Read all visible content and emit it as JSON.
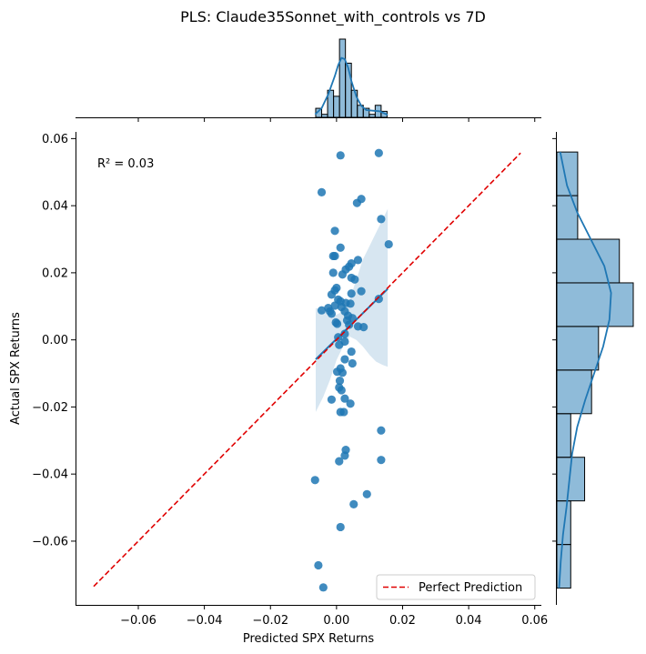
{
  "chart_data": {
    "type": "scatter",
    "title": "PLS: Claude35Sonnet_with_controls vs 7D",
    "xlabel": "Predicted SPX Returns",
    "ylabel": "Actual SPX Returns",
    "annotation": "R² = 0.03",
    "xlim": [
      -0.079,
      0.062
    ],
    "ylim": [
      -0.079,
      0.062
    ],
    "xticks": [
      -0.06,
      -0.04,
      -0.02,
      0.0,
      0.02,
      0.04,
      0.06
    ],
    "yticks": [
      -0.06,
      -0.04,
      -0.02,
      0.0,
      0.02,
      0.04,
      0.06
    ],
    "xtick_labels": [
      "−0.06",
      "−0.04",
      "−0.02",
      "0.00",
      "0.02",
      "0.04",
      "0.06"
    ],
    "ytick_labels": [
      "−0.06",
      "−0.04",
      "−0.02",
      "0.00",
      "0.02",
      "0.04",
      "0.06"
    ],
    "grid": false,
    "colors": {
      "points": "#1f77b4",
      "reference_line": "#e00000",
      "band": "#1f77b4",
      "hist": "#1f77b4"
    },
    "reference_line": {
      "name": "Perfect Prediction",
      "from": [
        -0.0735,
        -0.0735
      ],
      "to": [
        0.0557,
        0.0557
      ],
      "style": "dashed"
    },
    "regression_line": {
      "from": [
        -0.0063,
        -0.0058
      ],
      "to": [
        0.0155,
        0.0152
      ]
    },
    "confidence_band": {
      "x": [
        -0.0063,
        -0.004,
        -0.002,
        0.0,
        0.002,
        0.004,
        0.006,
        0.008,
        0.01,
        0.012,
        0.014,
        0.0155
      ],
      "upper": [
        0.0095,
        0.0085,
        0.008,
        0.0075,
        0.0085,
        0.012,
        0.018,
        0.024,
        0.028,
        0.032,
        0.036,
        0.039
      ],
      "lower": [
        -0.0215,
        -0.017,
        -0.012,
        -0.006,
        -0.002,
        0.001,
        0.0,
        -0.002,
        -0.0045,
        -0.0065,
        -0.0075,
        -0.008
      ]
    },
    "legend": {
      "location": "lower-right",
      "entries": [
        "Perfect Prediction"
      ]
    },
    "points": [
      {
        "x": 0.0012,
        "y": 0.055
      },
      {
        "x": 0.0128,
        "y": 0.0557
      },
      {
        "x": -0.0045,
        "y": 0.044
      },
      {
        "x": 0.0075,
        "y": 0.042
      },
      {
        "x": 0.0062,
        "y": 0.0408
      },
      {
        "x": 0.0135,
        "y": 0.036
      },
      {
        "x": 0.0158,
        "y": 0.0285
      },
      {
        "x": -0.0005,
        "y": 0.0325
      },
      {
        "x": 0.0012,
        "y": 0.0275
      },
      {
        "x": -0.001,
        "y": 0.025
      },
      {
        "x": -0.0005,
        "y": 0.025
      },
      {
        "x": 0.0065,
        "y": 0.0238
      },
      {
        "x": 0.0045,
        "y": 0.0228
      },
      {
        "x": 0.0038,
        "y": 0.0218
      },
      {
        "x": 0.0028,
        "y": 0.021
      },
      {
        "x": -0.001,
        "y": 0.02
      },
      {
        "x": 0.0018,
        "y": 0.0195
      },
      {
        "x": 0.0045,
        "y": 0.0185
      },
      {
        "x": 0.0055,
        "y": 0.018
      },
      {
        "x": 0.0,
        "y": 0.0155
      },
      {
        "x": -0.0005,
        "y": 0.0148
      },
      {
        "x": 0.0075,
        "y": 0.0145
      },
      {
        "x": -0.0015,
        "y": 0.0135
      },
      {
        "x": 0.0045,
        "y": 0.0138
      },
      {
        "x": 0.0128,
        "y": 0.0122
      },
      {
        "x": 0.0005,
        "y": 0.012
      },
      {
        "x": 0.0012,
        "y": 0.0115
      },
      {
        "x": 0.0028,
        "y": 0.011
      },
      {
        "x": 0.0042,
        "y": 0.0108
      },
      {
        "x": -0.0005,
        "y": 0.0102
      },
      {
        "x": 0.0015,
        "y": 0.0098
      },
      {
        "x": -0.0025,
        "y": 0.0095
      },
      {
        "x": -0.0045,
        "y": 0.0088
      },
      {
        "x": -0.002,
        "y": 0.0085
      },
      {
        "x": 0.0025,
        "y": 0.0085
      },
      {
        "x": -0.0015,
        "y": 0.0078
      },
      {
        "x": 0.0035,
        "y": 0.0072
      },
      {
        "x": 0.0048,
        "y": 0.0065
      },
      {
        "x": 0.0032,
        "y": 0.0058
      },
      {
        "x": -0.0002,
        "y": 0.0052
      },
      {
        "x": 0.0002,
        "y": 0.0048
      },
      {
        "x": 0.0038,
        "y": 0.0045
      },
      {
        "x": 0.0065,
        "y": 0.004
      },
      {
        "x": 0.0082,
        "y": 0.0038
      },
      {
        "x": 0.0025,
        "y": 0.0018
      },
      {
        "x": 0.0005,
        "y": 0.0008
      },
      {
        "x": 0.0025,
        "y": -0.0005
      },
      {
        "x": 0.0008,
        "y": -0.0015
      },
      {
        "x": 0.0045,
        "y": -0.0035
      },
      {
        "x": 0.0025,
        "y": -0.0058
      },
      {
        "x": 0.0048,
        "y": -0.007
      },
      {
        "x": 0.0012,
        "y": -0.0085
      },
      {
        "x": 0.0002,
        "y": -0.0095
      },
      {
        "x": 0.0018,
        "y": -0.0098
      },
      {
        "x": 0.001,
        "y": -0.0122
      },
      {
        "x": 0.0008,
        "y": -0.0142
      },
      {
        "x": 0.0015,
        "y": -0.015
      },
      {
        "x": 0.0025,
        "y": -0.0175
      },
      {
        "x": -0.0015,
        "y": -0.0178
      },
      {
        "x": 0.0042,
        "y": -0.019
      },
      {
        "x": 0.0012,
        "y": -0.0215
      },
      {
        "x": 0.0022,
        "y": -0.0215
      },
      {
        "x": 0.0135,
        "y": -0.027
      },
      {
        "x": 0.0028,
        "y": -0.0328
      },
      {
        "x": 0.0025,
        "y": -0.0345
      },
      {
        "x": 0.0008,
        "y": -0.0362
      },
      {
        "x": 0.0135,
        "y": -0.0358
      },
      {
        "x": -0.0065,
        "y": -0.0418
      },
      {
        "x": 0.0092,
        "y": -0.046
      },
      {
        "x": 0.0052,
        "y": -0.049
      },
      {
        "x": 0.0012,
        "y": -0.0558
      },
      {
        "x": -0.0055,
        "y": -0.0672
      },
      {
        "x": -0.004,
        "y": -0.0738
      }
    ],
    "x_marginal_hist": {
      "bin_edges": [
        -0.0063,
        -0.0045,
        -0.0027,
        -0.0009,
        0.0009,
        0.0027,
        0.0045,
        0.0063,
        0.0081,
        0.0099,
        0.0117,
        0.0135,
        0.0153
      ],
      "counts": [
        3,
        1,
        9,
        7,
        26,
        18,
        9,
        4,
        3,
        1,
        4,
        2
      ]
    },
    "y_marginal_hist": {
      "bin_edges": [
        -0.074,
        -0.061,
        -0.048,
        -0.035,
        -0.022,
        -0.009,
        0.004,
        0.017,
        0.03,
        0.043,
        0.056
      ],
      "counts": [
        2,
        2,
        4,
        2,
        5,
        6,
        11,
        9,
        3,
        3
      ]
    },
    "x_kde": {
      "x": [
        -0.0065,
        -0.0045,
        -0.0025,
        -0.0005,
        0.0005,
        0.0015,
        0.0025,
        0.0035,
        0.0045,
        0.006,
        0.0075,
        0.009,
        0.011,
        0.013,
        0.0155
      ],
      "density": [
        0.05,
        0.15,
        0.38,
        0.68,
        0.86,
        0.98,
        0.96,
        0.82,
        0.6,
        0.34,
        0.19,
        0.12,
        0.11,
        0.1,
        0.04
      ]
    },
    "y_kde": {
      "y": [
        -0.074,
        -0.066,
        -0.058,
        -0.05,
        -0.042,
        -0.034,
        -0.026,
        -0.018,
        -0.01,
        -0.002,
        0.006,
        0.014,
        0.022,
        0.03,
        0.038,
        0.046,
        0.056
      ],
      "density": [
        0.04,
        0.07,
        0.11,
        0.17,
        0.22,
        0.27,
        0.36,
        0.5,
        0.66,
        0.82,
        0.93,
        0.96,
        0.84,
        0.6,
        0.36,
        0.18,
        0.06
      ]
    }
  }
}
